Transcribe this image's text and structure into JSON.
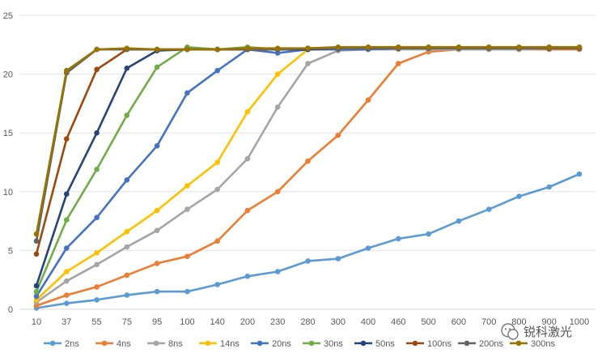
{
  "chart_data": {
    "type": "line",
    "title": "",
    "xlabel": "",
    "ylabel": "",
    "ylim": [
      0,
      25
    ],
    "yticks": [
      0,
      5,
      10,
      15,
      20,
      25
    ],
    "grid": "horizontal",
    "legend_position": "bottom",
    "categories": [
      "10",
      "37",
      "55",
      "75",
      "95",
      "100",
      "140",
      "200",
      "230",
      "280",
      "300",
      "400",
      "460",
      "500",
      "600",
      "700",
      "800",
      "900",
      "1000"
    ],
    "series": [
      {
        "name": "2ns",
        "color": "#5B9BD5",
        "values": [
          0.1,
          0.5,
          0.8,
          1.2,
          1.5,
          1.5,
          2.1,
          2.8,
          3.2,
          4.1,
          4.3,
          5.2,
          6.0,
          6.4,
          7.5,
          8.5,
          9.6,
          10.4,
          11.5
        ]
      },
      {
        "name": "4ns",
        "color": "#ED7D31",
        "values": [
          0.3,
          1.2,
          1.9,
          2.9,
          3.9,
          4.5,
          5.8,
          8.4,
          10.0,
          12.6,
          14.8,
          17.8,
          20.9,
          21.9,
          22.1,
          22.1,
          22.1,
          22.1,
          22.1
        ]
      },
      {
        "name": "8ns",
        "color": "#A5A5A5",
        "values": [
          0.6,
          2.4,
          3.8,
          5.3,
          6.7,
          8.5,
          10.2,
          12.8,
          17.2,
          20.9,
          22.0,
          22.1,
          22.1,
          22.1,
          22.1,
          22.1,
          22.1,
          22.2,
          22.2
        ]
      },
      {
        "name": "14ns",
        "color": "#FFC000",
        "values": [
          0.8,
          3.2,
          4.8,
          6.6,
          8.4,
          10.5,
          12.5,
          16.8,
          20.0,
          22.1,
          22.2,
          22.2,
          22.2,
          22.2,
          22.2,
          22.2,
          22.2,
          22.2,
          22.2
        ]
      },
      {
        "name": "20ns",
        "color": "#4472C4",
        "values": [
          1.1,
          5.2,
          7.8,
          11.0,
          13.9,
          18.4,
          20.3,
          22.1,
          21.8,
          22.1,
          22.1,
          22.1,
          22.2,
          22.2,
          22.2,
          22.2,
          22.2,
          22.2,
          22.2
        ]
      },
      {
        "name": "30ns",
        "color": "#70AD47",
        "values": [
          1.5,
          7.6,
          11.9,
          16.5,
          20.6,
          22.3,
          22.1,
          22.3,
          22.1,
          22.2,
          22.2,
          22.2,
          22.2,
          22.2,
          22.2,
          22.2,
          22.2,
          22.2,
          22.2
        ]
      },
      {
        "name": "50ns",
        "color": "#264478",
        "values": [
          2.0,
          9.8,
          15.0,
          20.5,
          22.0,
          22.1,
          22.1,
          22.1,
          22.1,
          22.1,
          22.2,
          22.2,
          22.2,
          22.2,
          22.2,
          22.2,
          22.2,
          22.2,
          22.2
        ]
      },
      {
        "name": "100ns",
        "color": "#9E480E",
        "values": [
          4.7,
          14.5,
          20.4,
          22.1,
          22.1,
          22.1,
          22.1,
          22.1,
          22.1,
          22.2,
          22.2,
          22.2,
          22.2,
          22.2,
          22.2,
          22.2,
          22.2,
          22.2,
          22.2
        ]
      },
      {
        "name": "200ns",
        "color": "#636363",
        "values": [
          5.8,
          20.1,
          22.1,
          22.1,
          22.1,
          22.1,
          22.1,
          22.1,
          22.1,
          22.2,
          22.2,
          22.2,
          22.2,
          22.2,
          22.2,
          22.2,
          22.2,
          22.2,
          22.2
        ]
      },
      {
        "name": "300ns",
        "color": "#997300",
        "values": [
          6.4,
          20.3,
          22.1,
          22.2,
          22.1,
          22.1,
          22.1,
          22.2,
          22.2,
          22.2,
          22.3,
          22.3,
          22.3,
          22.3,
          22.3,
          22.3,
          22.3,
          22.3,
          22.3
        ]
      }
    ]
  },
  "watermark": {
    "text": "锐科激光",
    "icon": "wechat-icon"
  }
}
